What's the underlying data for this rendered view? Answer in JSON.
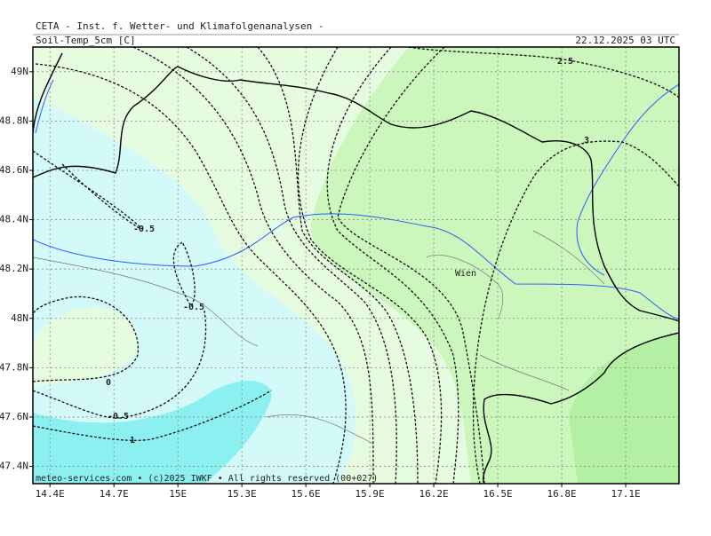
{
  "header": {
    "title": "CETA - Inst. f. Wetter- und Klimafolgenanalysen -",
    "parameter": "Soil-Temp_5cm [C]",
    "valid_time": "22.12.2025 03 UTC"
  },
  "map": {
    "lonlim": [
      14.32,
      17.35
    ],
    "latlim": [
      47.33,
      49.1
    ],
    "lonticks": [
      {
        "value": 14.4,
        "label": "14.4E"
      },
      {
        "value": 14.7,
        "label": "14.7E"
      },
      {
        "value": 15,
        "label": "15E"
      },
      {
        "value": 15.3,
        "label": "15.3E"
      },
      {
        "value": 15.6,
        "label": "15.6E"
      },
      {
        "value": 15.9,
        "label": "15.9E"
      },
      {
        "value": 16.2,
        "label": "16.2E"
      },
      {
        "value": 16.5,
        "label": "16.5E"
      },
      {
        "value": 16.8,
        "label": "16.8E"
      },
      {
        "value": 17.1,
        "label": "17.1E"
      }
    ],
    "latticks": [
      {
        "value": 49,
        "label": "49N"
      },
      {
        "value": 48.8,
        "label": "48.8N"
      },
      {
        "value": 48.6,
        "label": "48.6N"
      },
      {
        "value": 48.4,
        "label": "48.4N"
      },
      {
        "value": 48.2,
        "label": "48.2N"
      },
      {
        "value": 48,
        "label": "48N"
      },
      {
        "value": 47.8,
        "label": "47.8N"
      },
      {
        "value": 47.6,
        "label": "47.6N"
      },
      {
        "value": 47.4,
        "label": "47.4N"
      }
    ],
    "grid": true,
    "contour_labels": [
      "2.5",
      "3",
      "-0.5",
      "-0.5",
      "0",
      "-0.5",
      "1"
    ],
    "places": [
      "Wien"
    ]
  },
  "footer": "meteo-services.com • (c)2025 IWKF • All rights reserved (00+027)"
}
